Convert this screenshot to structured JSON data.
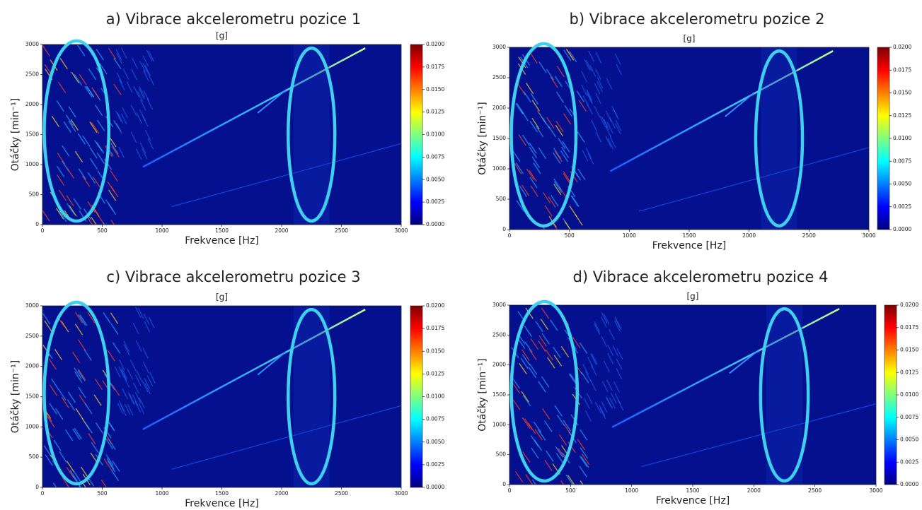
{
  "chart_data": [
    {
      "type": "heatmap",
      "title": "a) Vibrace akcelerometru pozice 1",
      "colorbar_label": "[g]",
      "xlabel": "Frekvence [Hz]",
      "ylabel": "Otáčky [min⁻¹]",
      "xlim": [
        0,
        3000
      ],
      "ylim": [
        0,
        3000
      ],
      "xticks": [
        0,
        500,
        1000,
        1500,
        2000,
        2500,
        3000
      ],
      "yticks": [
        0,
        500,
        1000,
        1500,
        2000,
        2500,
        3000
      ],
      "colormap": "jet",
      "clim": [
        0,
        0.02
      ],
      "cticks": [
        {
          "value": 0,
          "label": "0.0000"
        },
        {
          "value": 0.0025,
          "label": "0.0025"
        },
        {
          "value": 0.005,
          "label": "0.0050"
        },
        {
          "value": 0.0075,
          "label": "0.0075"
        },
        {
          "value": 0.01,
          "label": "0.0100"
        },
        {
          "value": 0.0125,
          "label": "0.0125"
        },
        {
          "value": 0.015,
          "label": "0.0150"
        },
        {
          "value": 0.0175,
          "label": "0.0175"
        },
        {
          "value": 0.02,
          "label": "0.0200"
        }
      ]
    },
    {
      "type": "heatmap",
      "title": "b) Vibrace akcelerometru pozice 2",
      "colorbar_label": "[g]",
      "xlabel": "Frekvence [Hz]",
      "ylabel": "Otáčky [min⁻¹]",
      "xlim": [
        0,
        3000
      ],
      "ylim": [
        0,
        3000
      ],
      "xticks": [
        0,
        500,
        1000,
        1500,
        2000,
        2500,
        3000
      ],
      "yticks": [
        0,
        500,
        1000,
        1500,
        2000,
        2500,
        3000
      ],
      "colormap": "jet",
      "clim": [
        0,
        0.02
      ],
      "cticks": [
        {
          "value": 0,
          "label": "0.0000"
        },
        {
          "value": 0.0025,
          "label": "0.0025"
        },
        {
          "value": 0.005,
          "label": "0.0050"
        },
        {
          "value": 0.0075,
          "label": "0.0075"
        },
        {
          "value": 0.01,
          "label": "0.0100"
        },
        {
          "value": 0.0125,
          "label": "0.0125"
        },
        {
          "value": 0.015,
          "label": "0.0150"
        },
        {
          "value": 0.0175,
          "label": "0.0175"
        },
        {
          "value": 0.02,
          "label": "0.0200"
        }
      ]
    },
    {
      "type": "heatmap",
      "title": "c) Vibrace akcelerometru pozice 3",
      "colorbar_label": "[g]",
      "xlabel": "Frekvence [Hz]",
      "ylabel": "Otáčky [min⁻¹]",
      "xlim": [
        0,
        3000
      ],
      "ylim": [
        0,
        3000
      ],
      "xticks": [
        0,
        500,
        1000,
        1500,
        2000,
        2500,
        3000
      ],
      "yticks": [
        0,
        500,
        1000,
        1500,
        2000,
        2500,
        3000
      ],
      "colormap": "jet",
      "clim": [
        0,
        0.02
      ],
      "cticks": [
        {
          "value": 0,
          "label": "0.0000"
        },
        {
          "value": 0.0025,
          "label": "0.0025"
        },
        {
          "value": 0.005,
          "label": "0.0050"
        },
        {
          "value": 0.0075,
          "label": "0.0075"
        },
        {
          "value": 0.01,
          "label": "0.0100"
        },
        {
          "value": 0.0125,
          "label": "0.0125"
        },
        {
          "value": 0.015,
          "label": "0.0150"
        },
        {
          "value": 0.0175,
          "label": "0.0175"
        },
        {
          "value": 0.02,
          "label": "0.0200"
        }
      ]
    },
    {
      "type": "heatmap",
      "title": "d) Vibrace akcelerometru pozice 4",
      "colorbar_label": "[g]",
      "xlabel": "Frekvence [Hz]",
      "ylabel": "Otáčky [min⁻¹]",
      "xlim": [
        0,
        3000
      ],
      "ylim": [
        0,
        3000
      ],
      "xticks": [
        0,
        500,
        1000,
        1500,
        2000,
        2500,
        3000
      ],
      "yticks": [
        0,
        500,
        1000,
        1500,
        2000,
        2500,
        3000
      ],
      "colormap": "jet",
      "clim": [
        0,
        0.02
      ],
      "cticks": [
        {
          "value": 0,
          "label": "0.0000"
        },
        {
          "value": 0.0025,
          "label": "0.0025"
        },
        {
          "value": 0.005,
          "label": "0.0050"
        },
        {
          "value": 0.0075,
          "label": "0.0075"
        },
        {
          "value": 0.01,
          "label": "0.0100"
        },
        {
          "value": 0.0125,
          "label": "0.0125"
        },
        {
          "value": 0.015,
          "label": "0.0150"
        },
        {
          "value": 0.0175,
          "label": "0.0175"
        },
        {
          "value": 0.02,
          "label": "0.0200"
        }
      ]
    }
  ]
}
